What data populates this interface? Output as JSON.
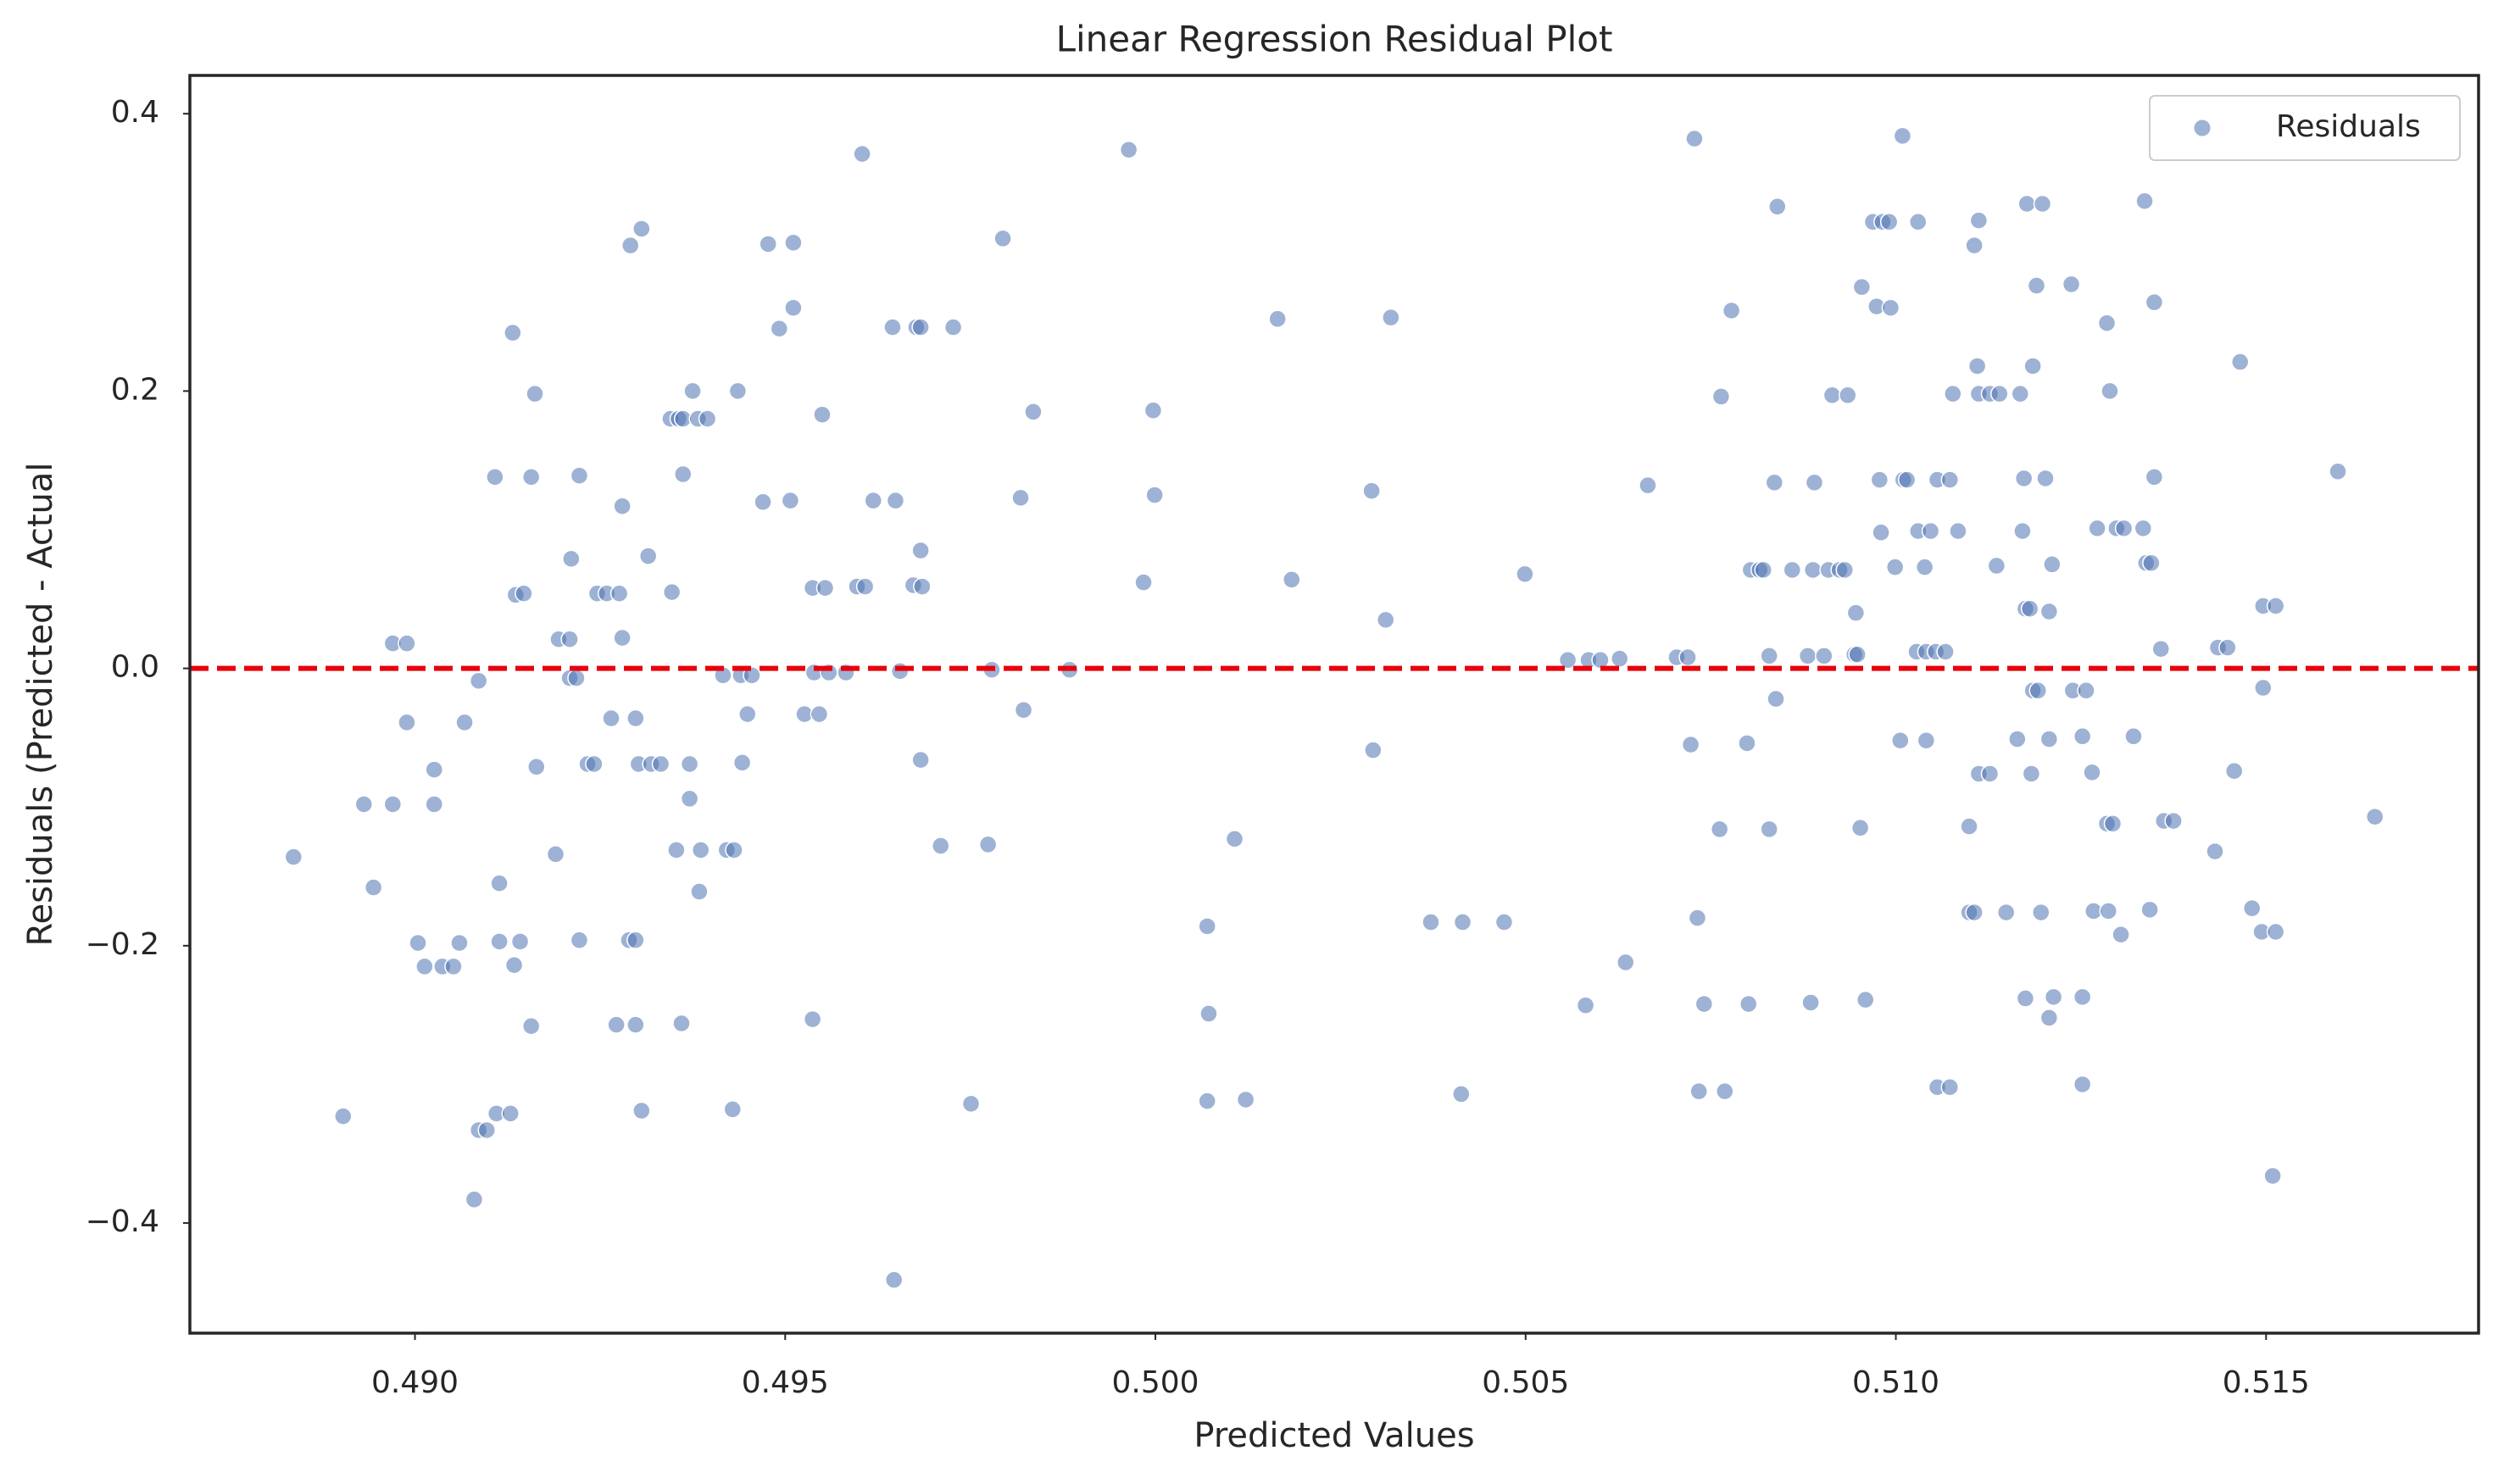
{
  "chart_data": {
    "type": "scatter",
    "title": "Linear Regression Residual Plot",
    "x_label": "Predicted Values",
    "y_label": "Residuals (Predicted - Actual",
    "xlim": [
      0.48696,
      0.51787
    ],
    "ylim": [
      -0.4794,
      0.4276
    ],
    "xticks": [
      {
        "value": 0.49,
        "label": "0.490"
      },
      0.495,
      {
        "value": 0.5,
        "label": "0.500"
      },
      0.505,
      {
        "value": 0.51,
        "label": "0.510"
      },
      0.515
    ],
    "yticks": [
      {
        "value": -0.4,
        "label": "−0.4"
      },
      {
        "value": -0.2,
        "label": "−0.2"
      },
      {
        "value": 0,
        "label": "0.0"
      },
      0.2,
      0.4
    ],
    "grid": false,
    "legend": "upper right",
    "hline": {
      "value": 0,
      "color": "#e8000b"
    },
    "series": [
      {
        "name": "Residuals",
        "color": "#4c72b0",
        "x": [
          0.48836,
          0.48903,
          0.48931,
          0.48944,
          0.4897,
          0.4897,
          0.48989,
          0.48989,
          0.49004,
          0.49013,
          0.49026,
          0.49026,
          0.49037,
          0.49052,
          0.4906,
          0.49067,
          0.4908,
          0.49086,
          0.49086,
          0.49097,
          0.49108,
          0.4911,
          0.49114,
          0.49114,
          0.49129,
          0.49132,
          0.49134,
          0.49136,
          0.49142,
          0.49147,
          0.49157,
          0.49157,
          0.49162,
          0.49164,
          0.4919,
          0.49194,
          0.49209,
          0.49209,
          0.49211,
          0.49218,
          0.49222,
          0.49222,
          0.49233,
          0.49242,
          0.49246,
          0.49259,
          0.49265,
          0.49272,
          0.49276,
          0.4928,
          0.4928,
          0.49289,
          0.49291,
          0.49298,
          0.49298,
          0.49298,
          0.49302,
          0.49306,
          0.49306,
          0.49315,
          0.49319,
          0.49332,
          0.49345,
          0.49347,
          0.49353,
          0.49356,
          0.4936,
          0.49362,
          0.49362,
          0.49371,
          0.49371,
          0.49375,
          0.49382,
          0.49384,
          0.49386,
          0.49395,
          0.49416,
          0.49421,
          0.49429,
          0.49431,
          0.49436,
          0.4944,
          0.49442,
          0.49449,
          0.49455,
          0.4947,
          0.49477,
          0.49492,
          0.49507,
          0.49511,
          0.49511,
          0.49526,
          0.49537,
          0.49537,
          0.49539,
          0.49546,
          0.4955,
          0.49554,
          0.49559,
          0.49582,
          0.49597,
          0.49604,
          0.49608,
          0.49619,
          0.49645,
          0.49647,
          0.49649,
          0.49655,
          0.49673,
          0.49677,
          0.49683,
          0.49683,
          0.49683,
          0.49685,
          0.4971,
          0.49727,
          0.49751,
          0.49774,
          0.49779,
          0.49794,
          0.49818,
          0.49822,
          0.49835,
          0.49884,
          0.49964,
          0.49984,
          0.49997,
          0.49999,
          0.5007,
          0.5007,
          0.50072,
          0.50107,
          0.50122,
          0.50165,
          0.50184,
          0.50292,
          0.50294,
          0.50311,
          0.50318,
          0.50372,
          0.50413,
          0.50415,
          0.50471,
          0.50499,
          0.50557,
          0.50581,
          0.50585,
          0.50601,
          0.50627,
          0.50635,
          0.50665,
          0.50704,
          0.50719,
          0.50723,
          0.50728,
          0.50732,
          0.50734,
          0.50741,
          0.50762,
          0.50764,
          0.50769,
          0.50778,
          0.50799,
          0.50801,
          0.50804,
          0.50816,
          0.50821,
          0.50829,
          0.50829,
          0.50836,
          0.50838,
          0.5084,
          0.5086,
          0.50881,
          0.50885,
          0.50888,
          0.5089,
          0.50903,
          0.50909,
          0.50914,
          0.50924,
          0.50931,
          0.50935,
          0.50944,
          0.50946,
          0.50948,
          0.50952,
          0.50954,
          0.50959,
          0.50969,
          0.50974,
          0.50978,
          0.5098,
          0.50982,
          0.50991,
          0.50993,
          0.50999,
          0.51006,
          0.51009,
          0.5101,
          0.51015,
          0.51028,
          0.5103,
          0.5103,
          0.51039,
          0.51041,
          0.51041,
          0.51047,
          0.51054,
          0.51056,
          0.51056,
          0.51067,
          0.51073,
          0.51073,
          0.51077,
          0.51084,
          0.51099,
          0.51099,
          0.51106,
          0.51106,
          0.5111,
          0.51112,
          0.51112,
          0.51112,
          0.51127,
          0.51127,
          0.51136,
          0.5114,
          0.51149,
          0.51164,
          0.51168,
          0.51171,
          0.51173,
          0.51175,
          0.51175,
          0.51177,
          0.51181,
          0.51183,
          0.51185,
          0.51185,
          0.5119,
          0.51192,
          0.51196,
          0.51198,
          0.51202,
          0.51207,
          0.51207,
          0.51207,
          0.51211,
          0.51213,
          0.51237,
          0.51239,
          0.51252,
          0.51252,
          0.51252,
          0.51257,
          0.51265,
          0.51267,
          0.51272,
          0.51285,
          0.51285,
          0.51287,
          0.51289,
          0.51293,
          0.51298,
          0.51304,
          0.51308,
          0.51321,
          0.51334,
          0.51336,
          0.51338,
          0.51343,
          0.51345,
          0.51349,
          0.51349,
          0.51358,
          0.51362,
          0.51375,
          0.51431,
          0.51435,
          0.51448,
          0.51457,
          0.51465,
          0.51481,
          0.51494,
          0.51496,
          0.51496,
          0.51509,
          0.51513,
          0.51513,
          0.51597,
          0.51647
        ],
        "values": [
          -0.136,
          -0.323,
          -0.098,
          -0.158,
          -0.098,
          0.018,
          0.018,
          -0.039,
          -0.198,
          -0.215,
          -0.073,
          -0.098,
          -0.215,
          -0.215,
          -0.198,
          -0.039,
          -0.383,
          -0.009,
          -0.333,
          -0.333,
          0.138,
          -0.321,
          -0.155,
          -0.197,
          -0.321,
          0.242,
          -0.214,
          0.053,
          -0.197,
          0.054,
          0.138,
          -0.258,
          0.198,
          -0.071,
          -0.134,
          0.021,
          0.021,
          -0.007,
          0.079,
          -0.007,
          0.139,
          -0.196,
          -0.069,
          -0.069,
          0.054,
          0.054,
          -0.036,
          -0.257,
          0.054,
          0.117,
          0.022,
          -0.196,
          0.305,
          -0.196,
          -0.036,
          -0.257,
          -0.069,
          0.317,
          -0.319,
          0.081,
          -0.069,
          -0.069,
          0.18,
          0.055,
          -0.131,
          0.18,
          -0.256,
          0.18,
          0.14,
          -0.069,
          -0.094,
          0.2,
          0.18,
          -0.161,
          -0.131,
          0.18,
          -0.005,
          -0.131,
          -0.318,
          -0.131,
          0.2,
          -0.005,
          -0.068,
          -0.033,
          -0.005,
          0.12,
          0.306,
          0.245,
          0.121,
          0.307,
          0.26,
          -0.033,
          -0.253,
          0.058,
          -0.003,
          -0.033,
          0.183,
          0.058,
          -0.003,
          -0.003,
          0.059,
          0.371,
          0.059,
          0.121,
          0.246,
          -0.441,
          0.121,
          -0.002,
          0.06,
          0.246,
          0.246,
          0.085,
          -0.066,
          0.059,
          -0.128,
          0.246,
          -0.314,
          -0.127,
          -0.001,
          0.31,
          0.123,
          -0.03,
          0.185,
          -0.001,
          0.374,
          0.062,
          0.186,
          0.125,
          -0.186,
          -0.312,
          -0.249,
          -0.123,
          -0.311,
          0.252,
          0.064,
          0.128,
          -0.059,
          0.035,
          0.253,
          -0.183,
          -0.307,
          -0.183,
          -0.183,
          0.068,
          0.006,
          -0.243,
          0.006,
          0.006,
          0.007,
          -0.212,
          0.132,
          0.008,
          0.008,
          -0.055,
          0.382,
          -0.18,
          -0.305,
          -0.242,
          -0.116,
          0.196,
          -0.305,
          0.258,
          -0.054,
          -0.242,
          0.071,
          0.071,
          0.071,
          0.009,
          -0.116,
          0.134,
          -0.022,
          0.333,
          0.071,
          0.009,
          -0.241,
          0.071,
          0.134,
          0.009,
          0.071,
          0.197,
          0.071,
          0.071,
          0.197,
          0.01,
          0.04,
          0.01,
          -0.115,
          0.275,
          -0.239,
          0.322,
          0.261,
          0.136,
          0.098,
          0.322,
          0.322,
          0.26,
          0.073,
          -0.052,
          0.384,
          0.136,
          0.136,
          0.012,
          0.099,
          0.322,
          0.073,
          0.012,
          -0.052,
          0.099,
          0.012,
          0.136,
          -0.302,
          0.012,
          0.136,
          -0.302,
          0.198,
          0.099,
          -0.114,
          -0.176,
          -0.176,
          0.305,
          0.218,
          -0.076,
          0.323,
          0.198,
          -0.076,
          0.198,
          0.074,
          0.198,
          -0.176,
          -0.051,
          0.198,
          0.099,
          0.137,
          0.043,
          -0.238,
          0.335,
          0.043,
          -0.076,
          0.218,
          -0.016,
          0.276,
          -0.016,
          -0.176,
          0.335,
          0.137,
          -0.051,
          0.041,
          -0.252,
          0.075,
          -0.237,
          0.277,
          -0.016,
          -0.3,
          -0.049,
          -0.237,
          -0.016,
          -0.075,
          -0.175,
          0.101,
          0.249,
          -0.112,
          -0.175,
          0.2,
          -0.112,
          0.101,
          -0.192,
          0.101,
          -0.049,
          0.101,
          0.337,
          0.076,
          -0.174,
          0.076,
          0.264,
          0.138,
          0.014,
          -0.11,
          -0.11,
          -0.132,
          0.015,
          0.015,
          -0.074,
          0.221,
          -0.173,
          -0.19,
          0.045,
          -0.014,
          -0.366,
          0.045,
          -0.19,
          0.142,
          -0.107
        ]
      }
    ]
  }
}
